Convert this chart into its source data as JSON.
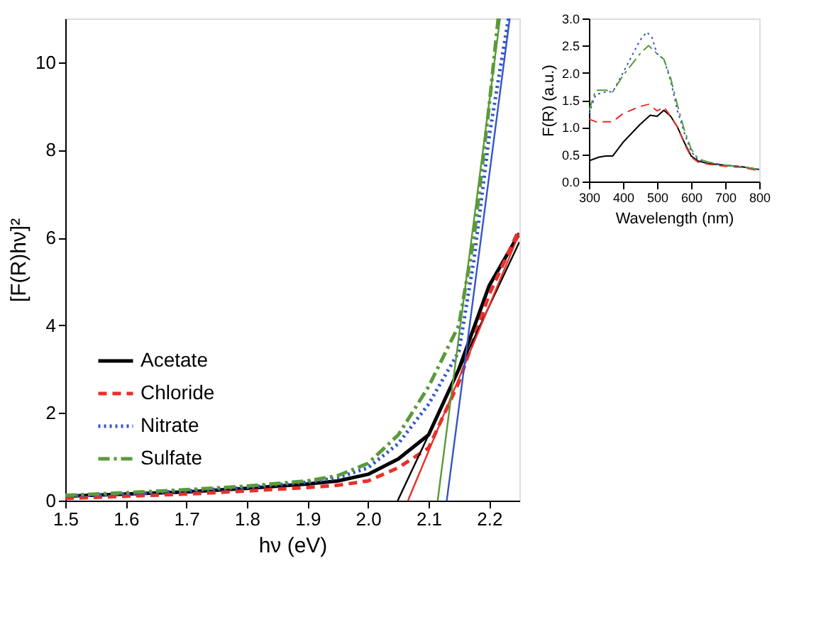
{
  "chart_data": [
    {
      "type": "line",
      "xlabel": "hν (eV)",
      "ylabel": "[F(R)hν]²",
      "xlim": [
        1.5,
        2.25
      ],
      "ylim": [
        0,
        11
      ],
      "xticks": [
        1.5,
        1.6,
        1.7,
        1.8,
        1.9,
        {
          "value": 2,
          "label": "2.0"
        },
        2.1,
        2.2
      ],
      "yticks": [
        0,
        2,
        4,
        6,
        8,
        10
      ],
      "grid": false,
      "legend": "bottom left",
      "series": [
        {
          "name": "Acetate",
          "color": "#000000",
          "line_style": "solid",
          "x": [
            1.5,
            1.6,
            1.7,
            1.8,
            1.9,
            1.95,
            2.0,
            2.05,
            2.1,
            2.15,
            2.2,
            2.25
          ],
          "values": [
            0.1,
            0.15,
            0.2,
            0.28,
            0.38,
            0.45,
            0.6,
            0.95,
            1.5,
            3.0,
            4.9,
            6.1
          ]
        },
        {
          "name": "Chloride",
          "color": "#e8302a",
          "line_style": "dashed",
          "x": [
            1.5,
            1.6,
            1.7,
            1.8,
            1.9,
            1.95,
            2.0,
            2.05,
            2.1,
            2.15,
            2.2,
            2.25
          ],
          "values": [
            0.05,
            0.1,
            0.15,
            0.22,
            0.3,
            0.35,
            0.45,
            0.75,
            1.2,
            2.7,
            4.7,
            6.2
          ]
        },
        {
          "name": "Nitrate",
          "color": "#3355cc",
          "line_style": "dotted",
          "x": [
            1.5,
            1.6,
            1.7,
            1.8,
            1.9,
            1.95,
            2.0,
            2.05,
            2.1,
            2.15,
            2.175,
            2.2,
            2.22,
            2.232
          ],
          "values": [
            0.1,
            0.15,
            0.22,
            0.3,
            0.42,
            0.52,
            0.75,
            1.3,
            2.2,
            3.4,
            5.5,
            8.3,
            10,
            11
          ]
        },
        {
          "name": "Sulfate",
          "color": "#5a9a3a",
          "line_style": "dashdot",
          "x": [
            1.5,
            1.6,
            1.7,
            1.8,
            1.9,
            1.95,
            2.0,
            2.05,
            2.1,
            2.15,
            2.175,
            2.2,
            2.215
          ],
          "values": [
            0.12,
            0.18,
            0.25,
            0.33,
            0.45,
            0.57,
            0.85,
            1.5,
            2.6,
            4.0,
            6.0,
            9.0,
            11
          ]
        },
        {
          "type": "line",
          "color": "#000000",
          "line_style": "solid",
          "x": [
            2.049,
            2.25
          ],
          "values": [
            0,
            5.9
          ]
        },
        {
          "type": "line",
          "color": "#e8302a",
          "line_style": "solid",
          "x": [
            2.066,
            2.25
          ],
          "values": [
            0,
            6.1
          ]
        },
        {
          "type": "line",
          "color": "#5a9a3a",
          "line_style": "solid",
          "x": [
            2.115,
            2.218
          ],
          "values": [
            0,
            11
          ]
        },
        {
          "type": "line",
          "color": "#3355cc",
          "line_style": "solid",
          "x": [
            2.13,
            2.234
          ],
          "values": [
            0,
            11
          ]
        }
      ]
    },
    {
      "type": "line",
      "xlabel": "Wavelength (nm)",
      "ylabel": "F(R) (a.u.)",
      "xlim": [
        300,
        800
      ],
      "ylim": [
        0,
        3
      ],
      "xticks": [
        300,
        400,
        500,
        600,
        700,
        800
      ],
      "yticks": [
        {
          "value": 0,
          "label": "0.0"
        },
        0.5,
        {
          "value": 1,
          "label": "1.0"
        },
        1.5,
        {
          "value": 2,
          "label": "2.0"
        },
        2.5,
        {
          "value": 3,
          "label": "3.0"
        }
      ],
      "grid": false,
      "legend": false,
      "series": [
        {
          "color": "#000000",
          "line_style": "solid",
          "x": [
            300,
            330,
            350,
            370,
            400,
            450,
            480,
            500,
            520,
            540,
            560,
            580,
            600,
            620,
            650,
            700,
            750,
            800
          ],
          "values": [
            0.38,
            0.45,
            0.47,
            0.47,
            0.72,
            1.05,
            1.22,
            1.2,
            1.31,
            1.2,
            1.0,
            0.72,
            0.47,
            0.38,
            0.33,
            0.3,
            0.27,
            0.22
          ]
        },
        {
          "color": "#e8302a",
          "line_style": "dashed",
          "x": [
            300,
            320,
            370,
            400,
            450,
            475,
            500,
            520,
            540,
            560,
            580,
            600,
            620,
            650,
            700,
            750,
            800
          ],
          "values": [
            1.15,
            1.1,
            1.1,
            1.25,
            1.38,
            1.42,
            1.3,
            1.37,
            1.2,
            1.0,
            0.7,
            0.45,
            0.36,
            0.32,
            0.28,
            0.26,
            0.2
          ]
        },
        {
          "color": "#3355cc",
          "line_style": "dotted",
          "x": [
            300,
            320,
            350,
            370,
            400,
            450,
            470,
            485,
            500,
            520,
            540,
            560,
            580,
            600,
            620,
            650,
            700,
            750,
            800
          ],
          "values": [
            1.25,
            1.6,
            1.65,
            1.65,
            2.0,
            2.6,
            2.75,
            2.65,
            2.35,
            2.25,
            1.85,
            1.3,
            0.9,
            0.55,
            0.4,
            0.35,
            0.3,
            0.27,
            0.22
          ]
        },
        {
          "color": "#5a9a3a",
          "line_style": "dashdot",
          "x": [
            300,
            320,
            350,
            370,
            400,
            450,
            475,
            500,
            520,
            540,
            560,
            580,
            600,
            620,
            650,
            700,
            750,
            800
          ],
          "values": [
            1.3,
            1.68,
            1.68,
            1.65,
            1.95,
            2.35,
            2.5,
            2.35,
            2.25,
            1.9,
            1.4,
            0.95,
            0.6,
            0.42,
            0.36,
            0.3,
            0.27,
            0.22
          ]
        }
      ]
    }
  ]
}
